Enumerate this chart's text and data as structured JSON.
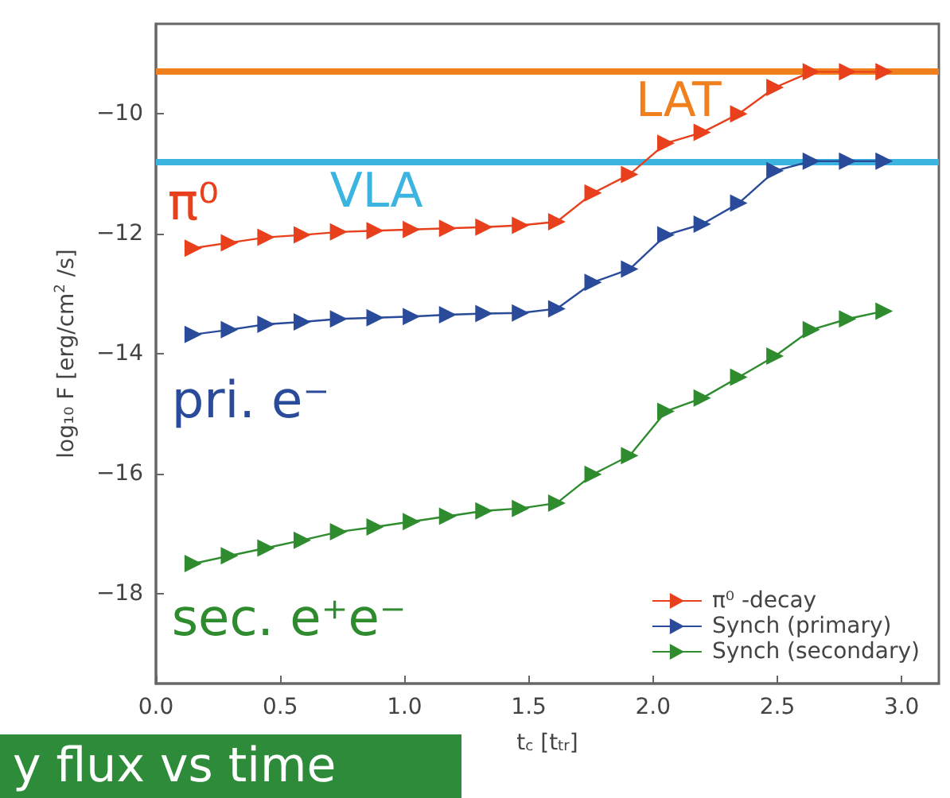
{
  "chart_data": {
    "type": "line",
    "xlabel": "t$_{c}$ [t$_{tr}$]",
    "ylabel": "log₁₀ F [erg/cm$^{2}$ /s]",
    "x": [
      0.15,
      0.296,
      0.443,
      0.589,
      0.735,
      0.882,
      1.028,
      1.174,
      1.32,
      1.467,
      1.613,
      1.759,
      1.906,
      2.052,
      2.198,
      2.345,
      2.491,
      2.637,
      2.783,
      2.93
    ],
    "series": [
      {
        "name": "π⁰ -decay",
        "color": "#e8401c",
        "values": [
          -12.24,
          -12.15,
          -12.06,
          -12.02,
          -11.97,
          -11.95,
          -11.93,
          -11.91,
          -11.89,
          -11.86,
          -11.8,
          -11.32,
          -11.01,
          -10.49,
          -10.31,
          -10.0,
          -9.56,
          -9.3,
          -9.3,
          -9.3
        ]
      },
      {
        "name": "Synch (primary)",
        "color": "#2a4a9a",
        "values": [
          -13.68,
          -13.6,
          -13.51,
          -13.47,
          -13.42,
          -13.4,
          -13.38,
          -13.35,
          -13.33,
          -13.32,
          -13.25,
          -12.81,
          -12.59,
          -12.02,
          -11.84,
          -11.49,
          -10.95,
          -10.79,
          -10.79,
          -10.79
        ]
      },
      {
        "name": "Synch (secondary)",
        "color": "#2e8b2e",
        "values": [
          -17.5,
          -17.37,
          -17.24,
          -17.11,
          -16.97,
          -16.89,
          -16.8,
          -16.71,
          -16.62,
          -16.58,
          -16.49,
          -16.01,
          -15.7,
          -14.96,
          -14.74,
          -14.39,
          -14.04,
          -13.6,
          -13.42,
          -13.29
        ]
      }
    ],
    "ref_lines": [
      {
        "axis": "y",
        "value": -9.28,
        "label": "LAT",
        "color": "#f07f1e"
      },
      {
        "axis": "y",
        "value": -10.79,
        "label": "VLA",
        "color": "#3bb5e0"
      }
    ],
    "annotations": [
      "π⁰",
      "pri. e⁻",
      "sec. e⁺e⁻",
      "y flux vs time"
    ],
    "xlim": [
      0,
      3.15
    ],
    "ylim": [
      -19.5,
      -8.5
    ],
    "xticks": [
      {
        "value": 0,
        "label": "0.0"
      },
      {
        "value": 0.5,
        "label": "0.5"
      },
      {
        "value": 1,
        "label": "1.0"
      },
      {
        "value": 1.5,
        "label": "1.5"
      },
      {
        "value": 2,
        "label": "2.0"
      },
      {
        "value": 2.5,
        "label": "2.5"
      },
      {
        "value": 3,
        "label": "3.0"
      }
    ],
    "yticks": [
      -10,
      -12,
      -14,
      -16,
      -18
    ],
    "grid": false,
    "legend": "bottom right",
    "marker": "triangle",
    "line_style": "solid"
  }
}
